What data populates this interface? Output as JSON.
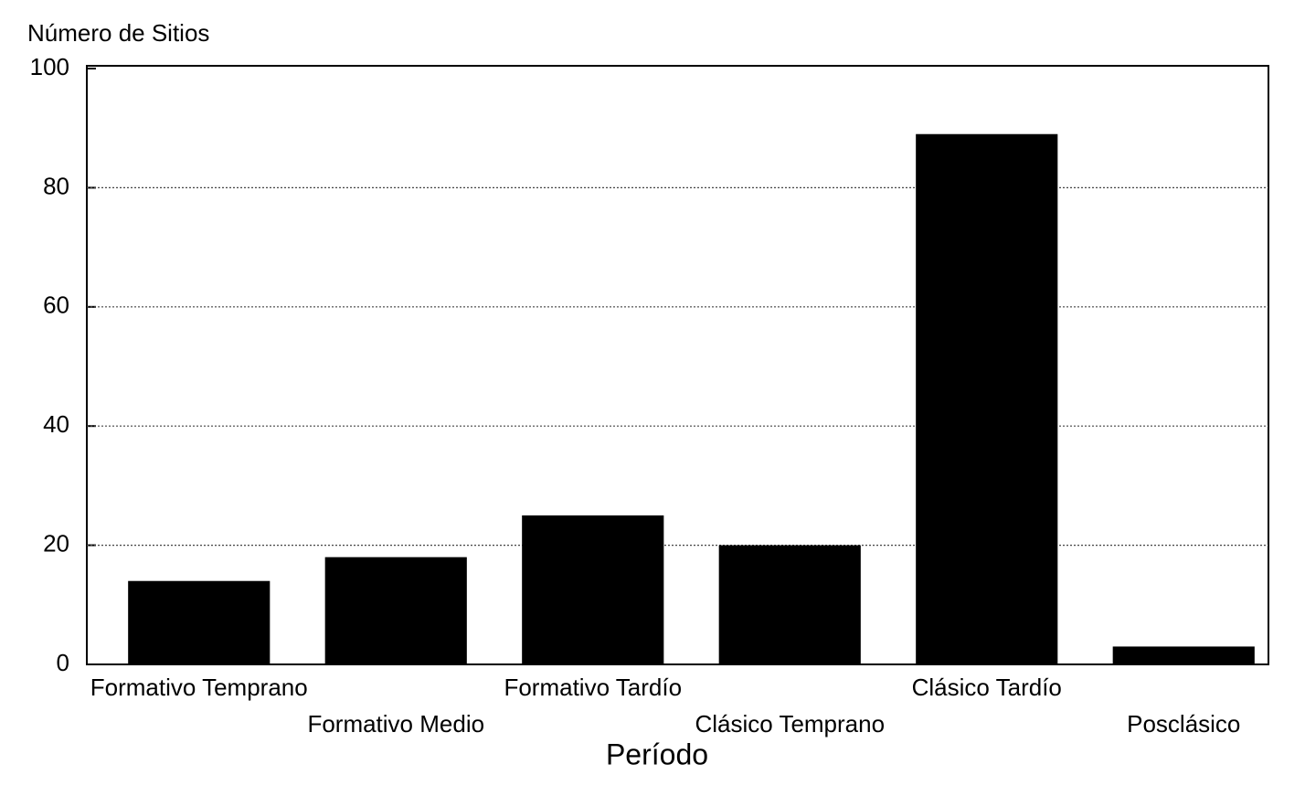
{
  "chart_data": {
    "type": "bar",
    "y_label": "Número de Sitios",
    "x_label": "Período",
    "categories": [
      "Formativo Temprano",
      "Formativo Medio",
      "Formativo Tardío",
      "Clásico Temprano",
      "Clásico Tardío",
      "Posclásico"
    ],
    "values": [
      14,
      18,
      25,
      20,
      89,
      3
    ],
    "color": "#000000",
    "ylim": [
      0,
      100
    ],
    "yticks": [
      0,
      20,
      40,
      60,
      80,
      100
    ],
    "grid": true
  }
}
